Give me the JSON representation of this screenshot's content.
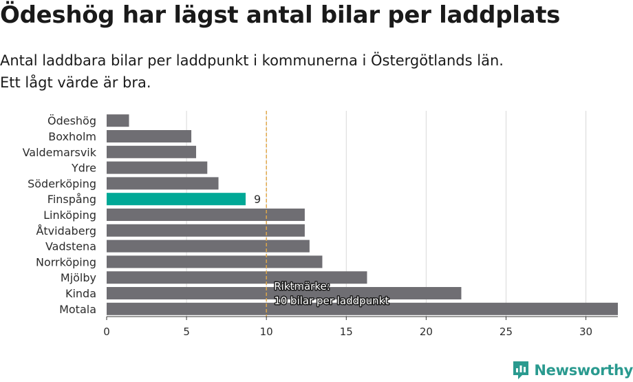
{
  "title": "Ödeshög har lägst antal bilar per laddplats",
  "subtitle_lines": [
    "Antal laddbara bilar per laddpunkt i kommunerna i Östergötlands län.",
    "Ett lågt värde är bra."
  ],
  "brand": "Newsworthy",
  "colors": {
    "bar": "#6f6e73",
    "highlight": "#00a896",
    "reference": "#e0a84a",
    "grid": "#d8d8d8",
    "brand": "#2a9a8f"
  },
  "chart_data": {
    "type": "bar",
    "orientation": "horizontal",
    "categories": [
      "Ödeshög",
      "Boxholm",
      "Valdemarsvik",
      "Ydre",
      "Söderköping",
      "Finspång",
      "Linköping",
      "Åtvidaberg",
      "Vadstena",
      "Norrköping",
      "Mjölby",
      "Kinda",
      "Motala"
    ],
    "values": [
      1.4,
      5.3,
      5.6,
      6.3,
      7.0,
      8.7,
      12.4,
      12.4,
      12.7,
      13.5,
      16.3,
      22.2,
      32.0
    ],
    "highlight": {
      "category": "Finspång",
      "label": "9"
    },
    "xlim": [
      0,
      32
    ],
    "xticks": [
      0,
      5,
      10,
      15,
      20,
      25,
      30
    ],
    "grid": true,
    "reference_line": {
      "value": 10,
      "label_lines": [
        "Riktmärke:",
        "10 bilar per laddpunkt"
      ]
    }
  }
}
